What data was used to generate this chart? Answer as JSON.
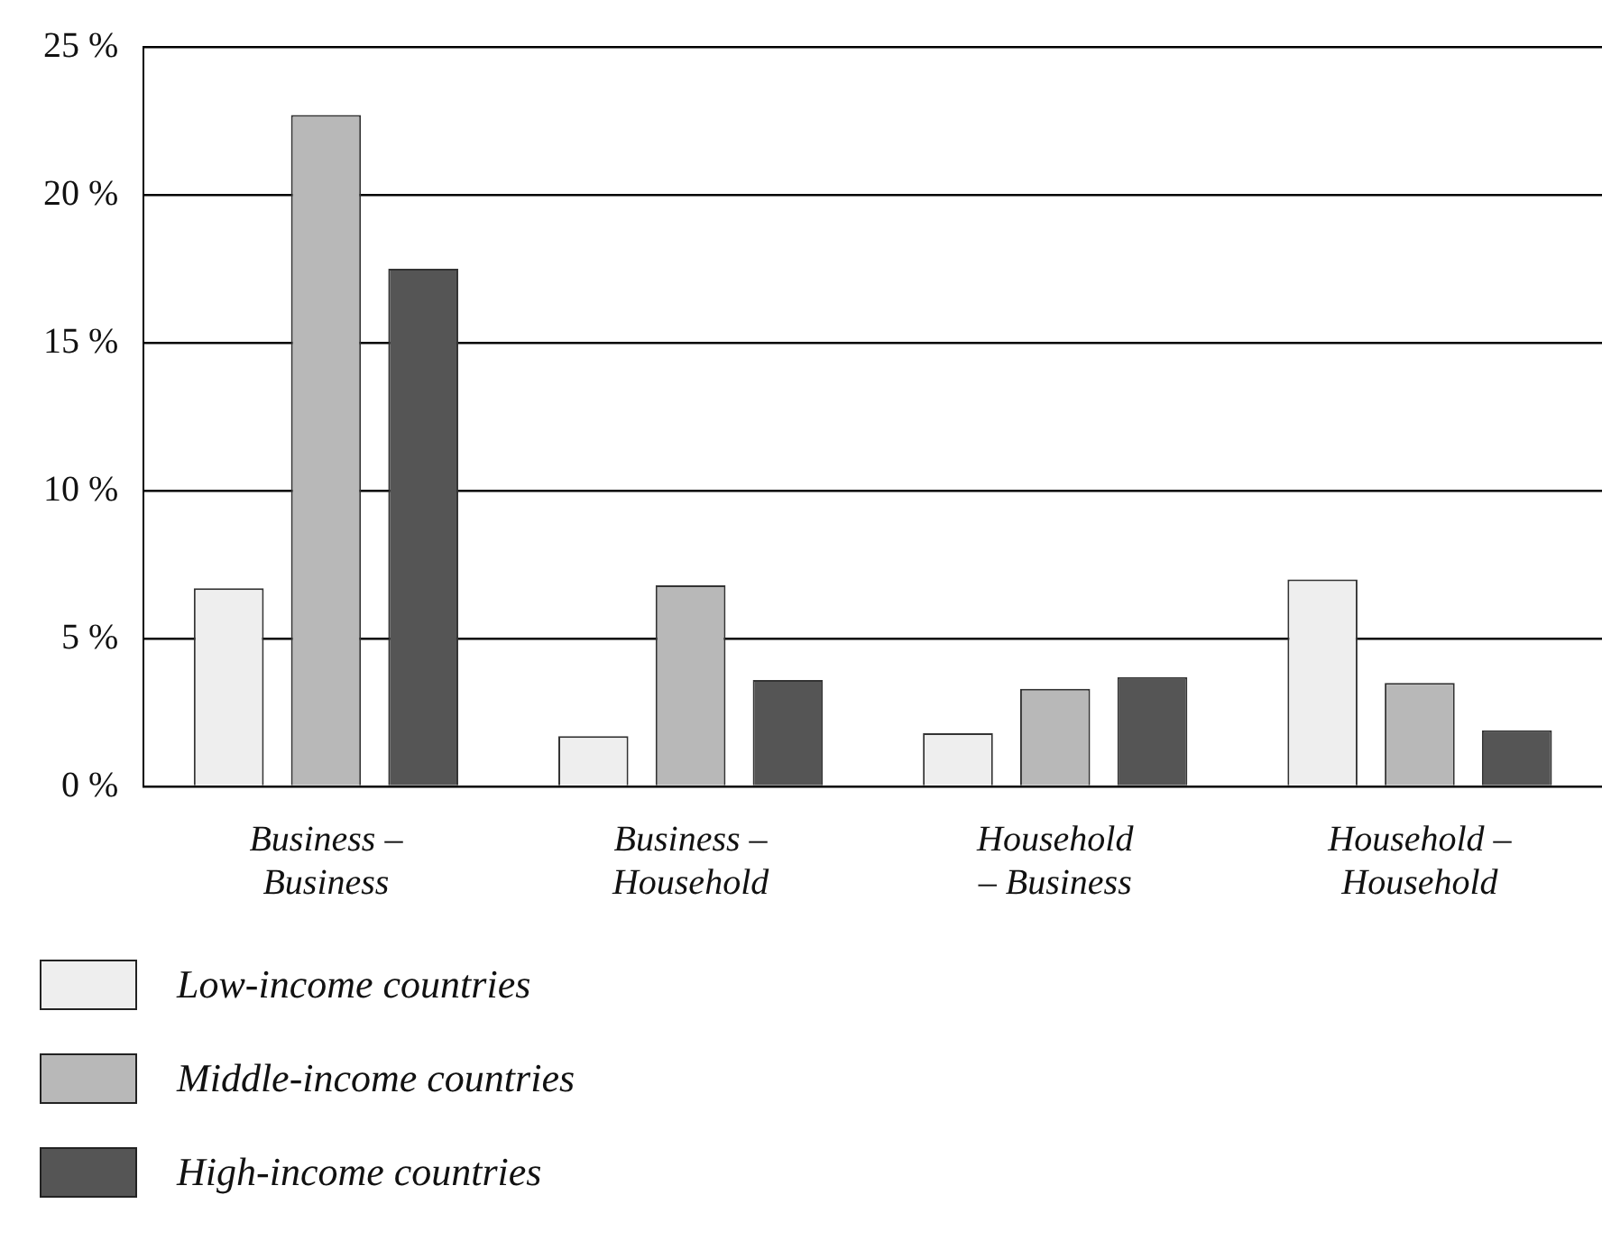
{
  "chart_data": {
    "type": "bar",
    "categories": [
      "Business –\nBusiness",
      "Business –\nHousehold",
      "Household\n– Business",
      "Household –\nHousehold"
    ],
    "series": [
      {
        "name": "Low-income countries",
        "color": "#eeeeee",
        "values": [
          6.7,
          1.7,
          1.8,
          7.0
        ]
      },
      {
        "name": "Middle-income countries",
        "color": "#b8b8b8",
        "values": [
          22.7,
          6.8,
          3.3,
          3.5
        ]
      },
      {
        "name": "High-income countries",
        "color": "#555555",
        "values": [
          17.5,
          3.6,
          3.7,
          1.9
        ]
      }
    ],
    "ylim": [
      0,
      25
    ],
    "yticks": [
      {
        "value": 0,
        "label": "0 %"
      },
      {
        "value": 5,
        "label": "5 %"
      },
      {
        "value": 10,
        "label": "10 %"
      },
      {
        "value": 15,
        "label": "15 %"
      },
      {
        "value": 20,
        "label": "20 %"
      },
      {
        "value": 25,
        "label": "25 %"
      }
    ],
    "grid": "y",
    "legend": "bottom left"
  }
}
